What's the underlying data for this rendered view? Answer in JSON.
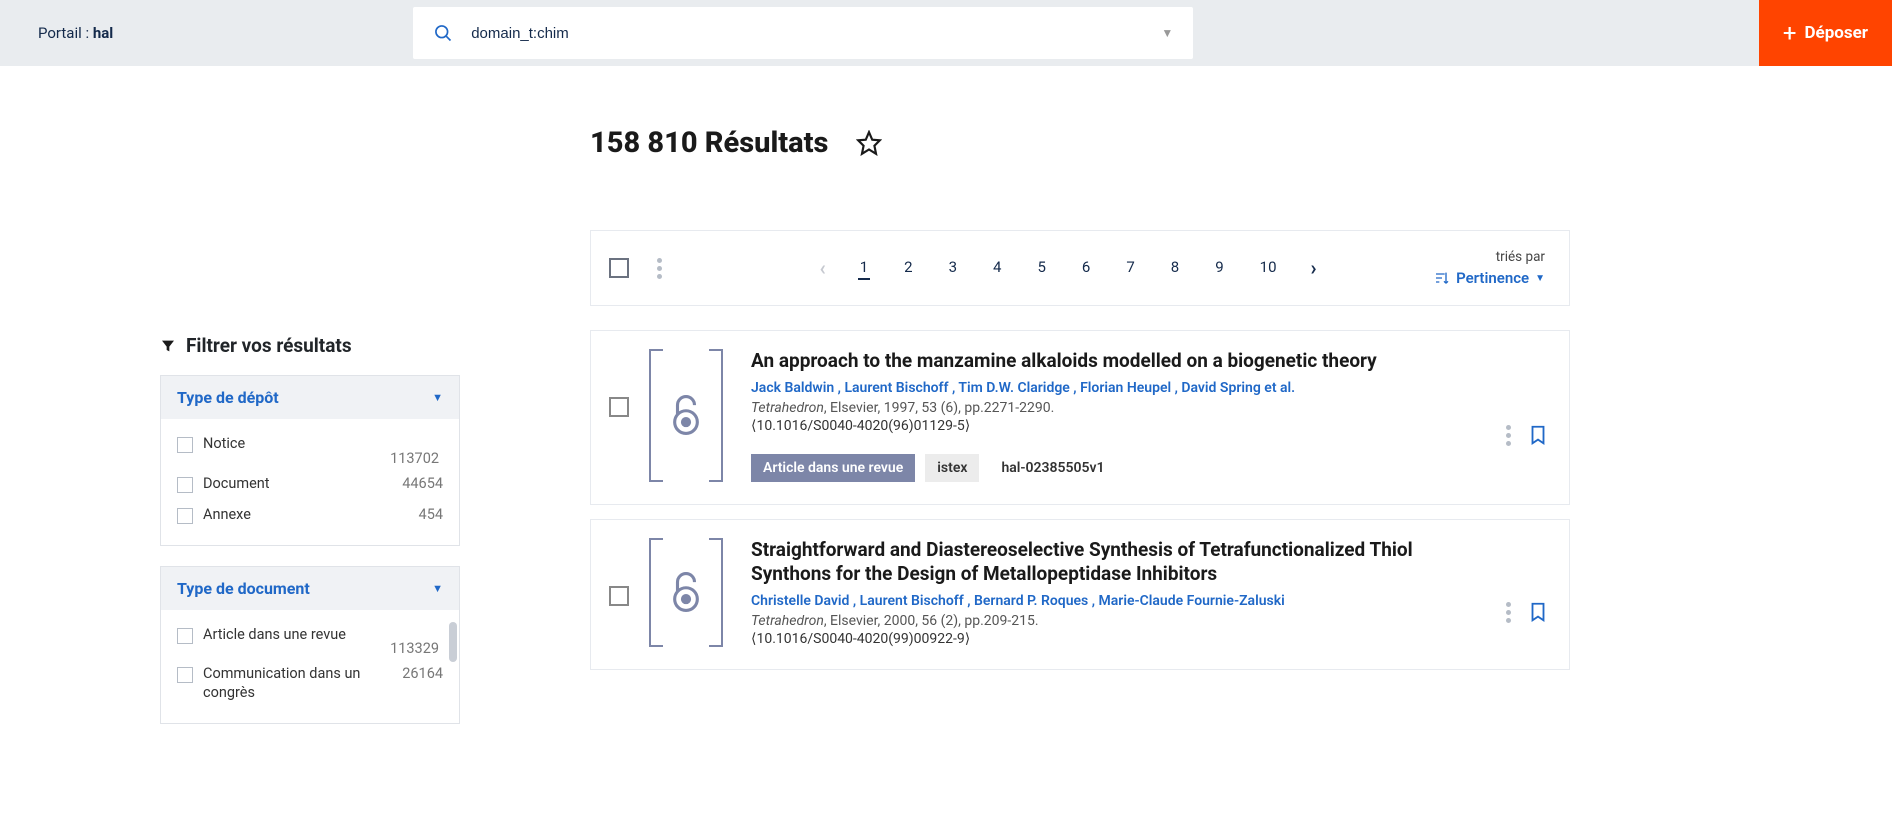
{
  "topbar": {
    "portal_prefix": "Portail : ",
    "portal_name": "hal",
    "search_value": "domain_t:chim",
    "deposit_label": "Déposer"
  },
  "results_header": {
    "count_label": "158 810 Résultats"
  },
  "sidebar": {
    "filter_title": "Filtrer vos résultats",
    "facets": [
      {
        "title": "Type de dépôt",
        "items": [
          {
            "label": "Notice",
            "count": "113702",
            "count_above": true
          },
          {
            "label": "Document",
            "count": "44654"
          },
          {
            "label": "Annexe",
            "count": "454"
          }
        ]
      },
      {
        "title": "Type de document",
        "scroll": true,
        "items": [
          {
            "label": "Article dans une revue",
            "count": "113329",
            "count_above": true
          },
          {
            "label": "Communication dans un congrès",
            "count": "26164"
          }
        ]
      }
    ]
  },
  "pager": {
    "pages": [
      "1",
      "2",
      "3",
      "4",
      "5",
      "6",
      "7",
      "8",
      "9",
      "10"
    ],
    "current": "1",
    "sort_label": "triés par",
    "sort_value": "Pertinence"
  },
  "results": [
    {
      "title": "An approach to the manzamine alkaloids modelled on a biogenetic theory",
      "authors": "Jack Baldwin , Laurent Bischoff , Tim D.W. Claridge , Florian Heupel , David Spring et al.",
      "journal": "Tetrahedron",
      "source_rest": ", Elsevier, 1997, 53 (6), pp.2271-2290.",
      "doi": "⟨10.1016/S0040-4020(96)01129-5⟩",
      "type_tag": "Article dans une revue",
      "istex": "istex",
      "halid": "hal-02385505v1"
    },
    {
      "title": "Straightforward and Diastereoselective Synthesis of Tetrafunctionalized Thiol Synthons for the Design of Metallopeptidase Inhibitors",
      "authors": "Christelle David , Laurent Bischoff , Bernard P. Roques , Marie-Claude Fournie-Zaluski",
      "journal": "Tetrahedron",
      "source_rest": ", Elsevier, 2000, 56 (2), pp.209-215.",
      "doi": "⟨10.1016/S0040-4020(99)00922-9⟩"
    }
  ],
  "colors": {
    "accent_blue": "#2068c7",
    "deposit_orange": "#ff4400",
    "muted_purple": "#7d86a8",
    "topbar_bg": "#e9ecef"
  }
}
